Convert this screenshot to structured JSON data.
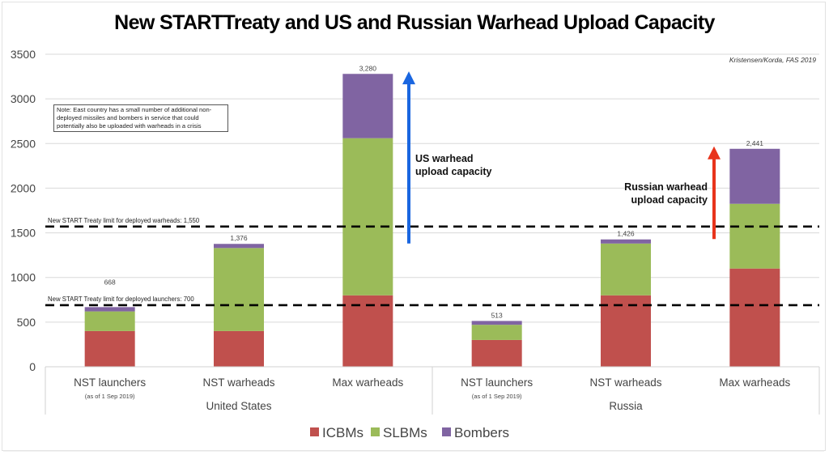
{
  "chart_data": {
    "type": "bar",
    "stacked": true,
    "title": "New STARTTreaty and US and Russian Warhead Upload Capacity",
    "source": "Kristensen/Korda, FAS 2019",
    "note": "Note: East country has a small number of additional non-deployed missiles and bombers in service that could potentially also be uploaded with warheads in a crisis",
    "ylim": [
      0,
      3500
    ],
    "yticks": [
      0,
      500,
      1000,
      1500,
      2000,
      2500,
      3000,
      3500
    ],
    "grid": true,
    "groups": [
      {
        "name": "United States",
        "categories": [
          0,
          1,
          2
        ]
      },
      {
        "name": "Russia",
        "categories": [
          3,
          4,
          5
        ]
      }
    ],
    "categories": [
      {
        "label": "NST launchers",
        "sublabel": "(as of 1 Sep 2019)"
      },
      {
        "label": "NST warheads",
        "sublabel": ""
      },
      {
        "label": "Max warheads",
        "sublabel": ""
      },
      {
        "label": "NST launchers",
        "sublabel": "(as of 1 Sep 2019)"
      },
      {
        "label": "NST warheads",
        "sublabel": ""
      },
      {
        "label": "Max warheads",
        "sublabel": ""
      }
    ],
    "series": [
      {
        "name": "ICBMs",
        "color": "#c0504d",
        "values": [
          400,
          400,
          800,
          300,
          800,
          1100
        ]
      },
      {
        "name": "SLBMs",
        "color": "#9bbb59",
        "values": [
          220,
          930,
          1760,
          170,
          580,
          725
        ]
      },
      {
        "name": "Bombers",
        "color": "#8064a2",
        "values": [
          48,
          46,
          720,
          43,
          46,
          616
        ]
      }
    ],
    "totals": [
      "668",
      "1,376",
      "3,280",
      "513",
      "1,426",
      "2,441"
    ],
    "reference_lines": [
      {
        "label": "New START Treaty limit for deployed warheads: 1,550",
        "value": 1570
      },
      {
        "label": "New START Treaty limit for deployed launchers: 700",
        "value": 690
      }
    ],
    "annotations": [
      {
        "label_lines": [
          "US warhead",
          "upload capacity"
        ],
        "color": "#1a66e0",
        "from": 1380,
        "to": 3290
      },
      {
        "label_lines": [
          "Russian warhead",
          "upload capacity"
        ],
        "color": "#e8341c",
        "from": 1430,
        "to": 2450
      }
    ],
    "legend": {
      "position": "bottom"
    }
  }
}
